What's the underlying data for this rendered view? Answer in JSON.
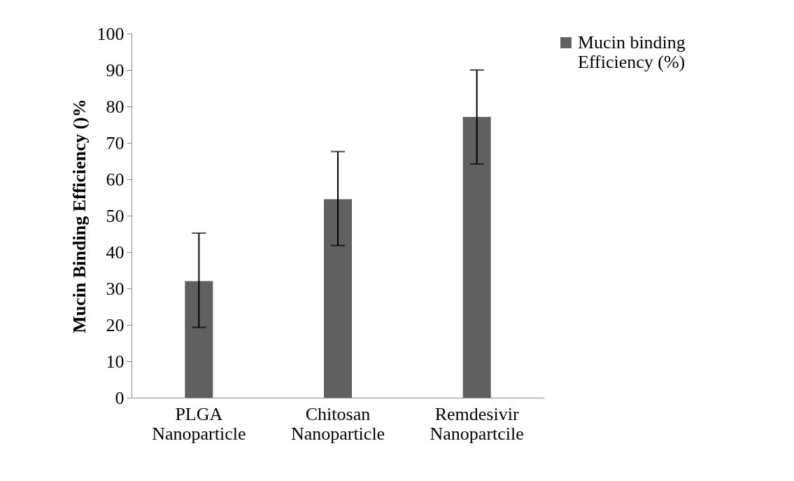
{
  "chart_data": {
    "type": "bar",
    "categories": [
      "PLGA Nanoparticle",
      "Chitosan Nanoparticle",
      "Remdesivir Nanopartcile"
    ],
    "series": [
      {
        "name": "Mucin binding Efficiency (%)",
        "color": "#606060",
        "values": [
          32.0,
          54.5,
          77.1
        ],
        "errors": [
          [
            19.3,
            45.2
          ],
          [
            41.8,
            67.6
          ],
          [
            64.2,
            90.0
          ]
        ]
      }
    ],
    "ylabel": "Mucin Binding Efficiency ()%",
    "ylim": [
      0,
      100
    ],
    "yticks": [
      0,
      10,
      20,
      30,
      40,
      50,
      60,
      70,
      80,
      90,
      100
    ],
    "grid": false,
    "legend": "right"
  }
}
